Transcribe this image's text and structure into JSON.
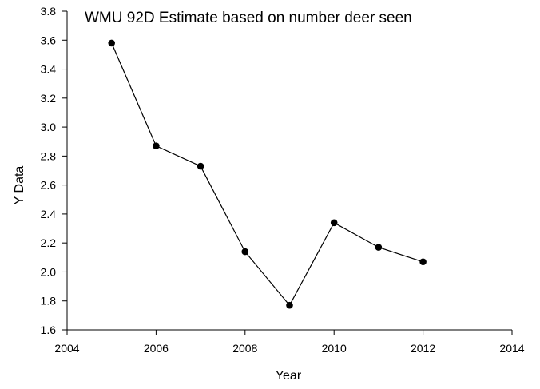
{
  "chart_data": {
    "type": "line",
    "title": "WMU 92D Estimate based on number deer seen",
    "xlabel": "Year",
    "ylabel": "Y Data",
    "xlim": [
      2004,
      2014
    ],
    "ylim": [
      1.6,
      3.8
    ],
    "x_ticks": [
      "2004",
      "2006",
      "2008",
      "2010",
      "2012",
      "2014"
    ],
    "y_ticks": [
      "1.6",
      "1.8",
      "2.0",
      "2.2",
      "2.4",
      "2.6",
      "2.8",
      "3.0",
      "3.2",
      "3.4",
      "3.6",
      "3.8"
    ],
    "grid": false,
    "legend": "none",
    "series": [
      {
        "x": [
          2005,
          2006,
          2007,
          2008,
          2009,
          2010,
          2011,
          2012
        ],
        "values": [
          3.58,
          2.87,
          2.73,
          2.14,
          1.77,
          2.34,
          2.17,
          2.07
        ],
        "color": "#000000",
        "marker": "circle"
      }
    ]
  }
}
